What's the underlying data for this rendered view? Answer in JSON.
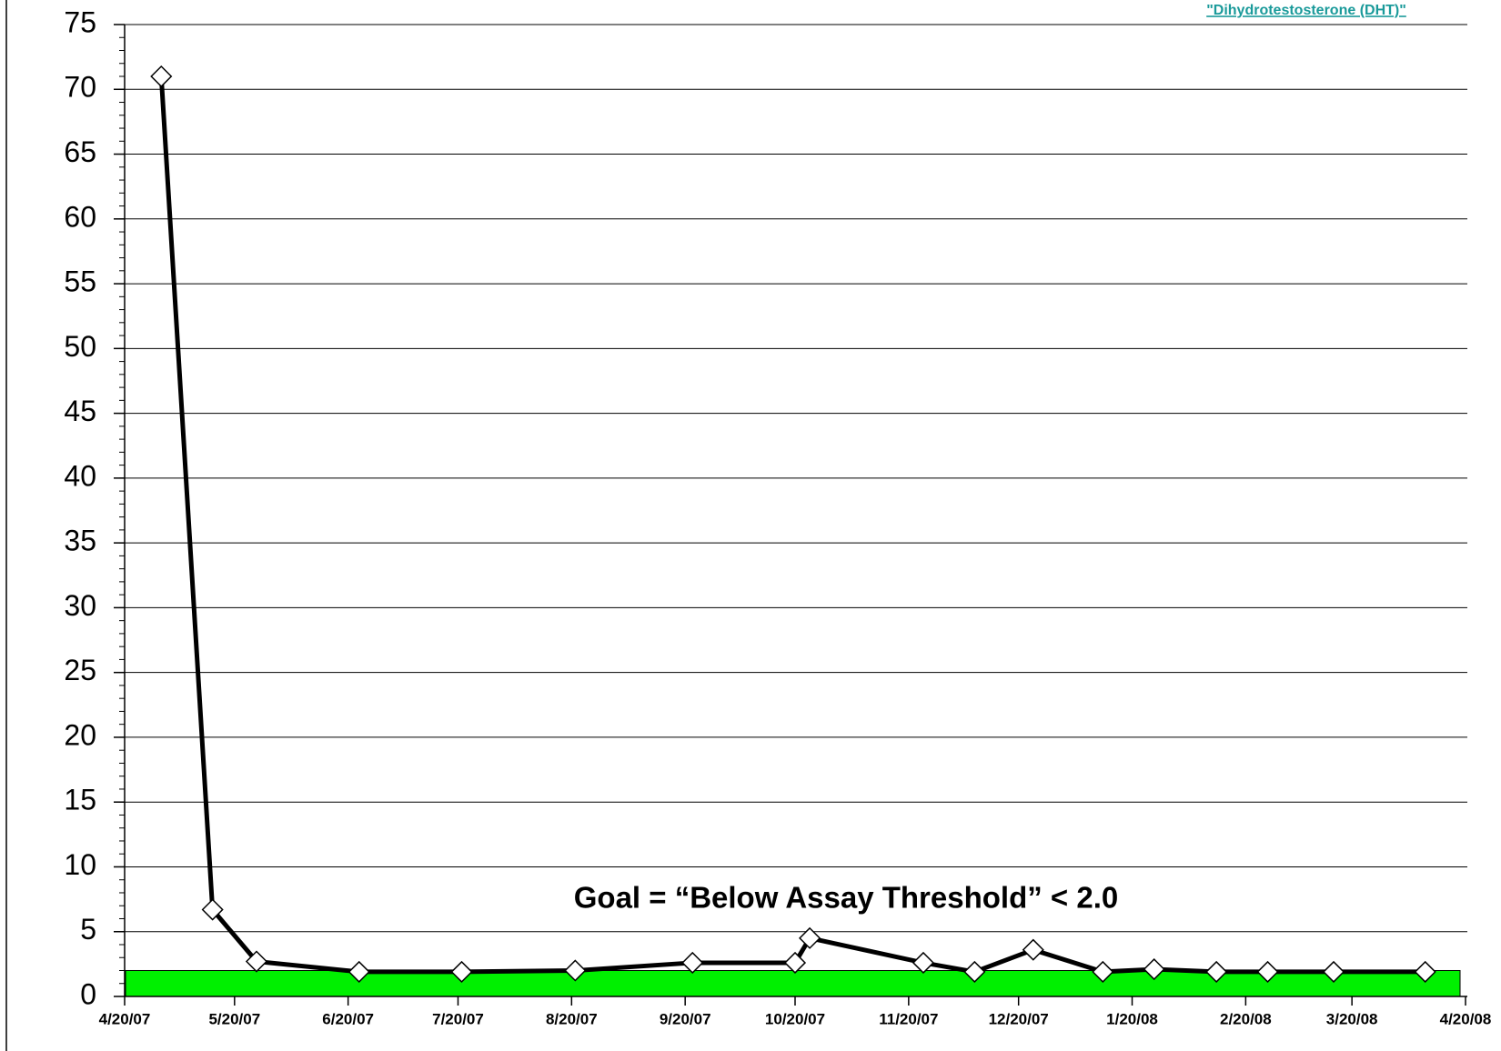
{
  "chart_data": {
    "type": "line",
    "title": "\"Dihydrotestosterone (DHT)\"",
    "annotation": "Goal  = “Below Assay Threshold” < 2.0",
    "threshold": 2.0,
    "threshold_color": "#00f000",
    "x": [
      "4/30/07",
      "5/14/07",
      "5/26/07",
      "6/23/07",
      "7/21/07",
      "8/21/07",
      "9/22/07",
      "10/20/07",
      "10/24/07",
      "11/24/07",
      "12/8/07",
      "12/24/07",
      "1/12/08",
      "1/26/08",
      "2/12/08",
      "2/26/08",
      "3/15/08",
      "4/9/08"
    ],
    "series": [
      {
        "color": "#000000",
        "marker_color": "#ffffff",
        "values": [
          71,
          6.7,
          2.7,
          1.9,
          1.9,
          2.0,
          2.6,
          2.6,
          4.5,
          2.6,
          1.9,
          3.6,
          1.9,
          2.1,
          1.9,
          1.9,
          1.9,
          1.9
        ]
      }
    ],
    "xlim": [
      "4/20/07",
      "4/20/08"
    ],
    "xticks": [
      "4/20/07",
      "5/20/07",
      "6/20/07",
      "7/20/07",
      "8/20/07",
      "9/20/07",
      "10/20/07",
      "11/20/07",
      "12/20/07",
      "1/20/08",
      "2/20/08",
      "3/20/08",
      "4/20/08"
    ],
    "ylim": [
      0,
      75
    ],
    "yticks": [
      0,
      5,
      10,
      15,
      20,
      25,
      30,
      35,
      40,
      45,
      50,
      55,
      60,
      65,
      70,
      75
    ],
    "grid": true
  }
}
